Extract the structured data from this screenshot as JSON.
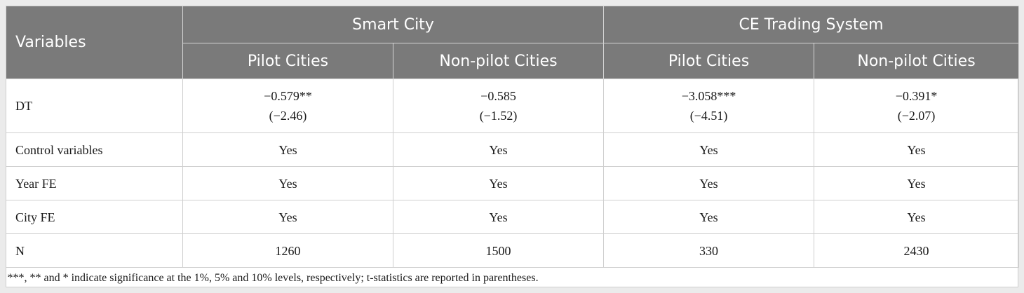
{
  "header": {
    "variables_label": "Variables",
    "groups": [
      "Smart City",
      "CE Trading System"
    ],
    "subheaders": [
      "Pilot Cities",
      "Non-pilot Cities",
      "Pilot Cities",
      "Non-pilot Cities"
    ]
  },
  "rows": [
    {
      "label": "DT",
      "cells": [
        {
          "coef": "−0.579**",
          "t": "(−2.46)"
        },
        {
          "coef": "−0.585",
          "t": "(−1.52)"
        },
        {
          "coef": "−3.058***",
          "t": "(−4.51)"
        },
        {
          "coef": "−0.391*",
          "t": "(−2.07)"
        }
      ]
    },
    {
      "label": "Control variables",
      "values": [
        "Yes",
        "Yes",
        "Yes",
        "Yes"
      ]
    },
    {
      "label": "Year FE",
      "values": [
        "Yes",
        "Yes",
        "Yes",
        "Yes"
      ]
    },
    {
      "label": "City FE",
      "values": [
        "Yes",
        "Yes",
        "Yes",
        "Yes"
      ]
    },
    {
      "label": "N",
      "values": [
        "1260",
        "1500",
        "330",
        "2430"
      ]
    }
  ],
  "footnote": "***, ** and * indicate significance at the 1%, 5% and 10% levels, respectively; t-statistics are reported in parentheses."
}
